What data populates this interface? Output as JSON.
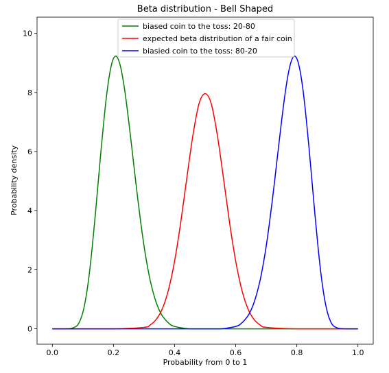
{
  "chart_data": {
    "type": "line",
    "title": "Beta distribution - Bell Shaped",
    "xlabel": "Probability from 0 to 1",
    "ylabel": "Probability density",
    "xlim": [
      -0.05,
      1.05
    ],
    "ylim": [
      -0.52,
      10.55
    ],
    "x_ticks": [
      0.0,
      0.2,
      0.4,
      0.6,
      0.8,
      1.0
    ],
    "x_tick_labels": [
      "0.0",
      "0.2",
      "0.4",
      "0.6",
      "0.8",
      "1.0"
    ],
    "y_ticks": [
      0,
      2,
      4,
      6,
      8,
      10
    ],
    "y_tick_labels": [
      "0",
      "2",
      "4",
      "6",
      "8",
      "10"
    ],
    "grid": false,
    "legend_position": "upper center",
    "series": [
      {
        "name": "biased coin to the toss: 20-80",
        "color": "#008000",
        "x": [
          0.0,
          0.02,
          0.04,
          0.06,
          0.08,
          0.09,
          0.1,
          0.11,
          0.12,
          0.13,
          0.14,
          0.15,
          0.16,
          0.17,
          0.18,
          0.19,
          0.2,
          0.21,
          0.22,
          0.23,
          0.24,
          0.25,
          0.26,
          0.27,
          0.28,
          0.29,
          0.3,
          0.31,
          0.32,
          0.33,
          0.34,
          0.35,
          0.36,
          0.38,
          0.4,
          0.45,
          0.5,
          0.6,
          0.7,
          0.8,
          0.9,
          1.0
        ],
        "y": [
          0.0,
          0.0,
          0.0,
          0.01,
          0.1,
          0.26,
          0.56,
          1.06,
          1.78,
          2.71,
          3.79,
          4.95,
          6.12,
          7.19,
          8.1,
          8.77,
          9.15,
          9.22,
          9.0,
          8.52,
          7.84,
          7.02,
          6.14,
          5.24,
          4.36,
          3.55,
          2.81,
          2.18,
          1.65,
          1.23,
          0.89,
          0.63,
          0.44,
          0.2,
          0.08,
          0.0,
          0.0,
          0.0,
          0.0,
          0.0,
          0.0,
          0.0
        ]
      },
      {
        "name": "expected beta distribution of a fair coin",
        "color": "#ff0000",
        "x": [
          0.0,
          0.1,
          0.2,
          0.3,
          0.32,
          0.34,
          0.36,
          0.38,
          0.4,
          0.42,
          0.44,
          0.46,
          0.48,
          0.5,
          0.52,
          0.54,
          0.56,
          0.58,
          0.6,
          0.62,
          0.64,
          0.66,
          0.68,
          0.7,
          0.8,
          0.9,
          1.0
        ],
        "y": [
          0.0,
          0.0,
          0.0,
          0.05,
          0.13,
          0.32,
          0.68,
          1.32,
          2.29,
          3.59,
          5.1,
          6.55,
          7.62,
          7.96,
          7.62,
          6.55,
          5.1,
          3.59,
          2.29,
          1.32,
          0.68,
          0.32,
          0.13,
          0.05,
          0.0,
          0.0,
          0.0
        ]
      },
      {
        "name": "biasied coin to the toss: 80-20",
        "color": "#0000ff",
        "x": [
          0.0,
          0.1,
          0.2,
          0.3,
          0.4,
          0.5,
          0.55,
          0.6,
          0.62,
          0.64,
          0.65,
          0.66,
          0.67,
          0.68,
          0.69,
          0.7,
          0.71,
          0.72,
          0.73,
          0.74,
          0.75,
          0.76,
          0.77,
          0.78,
          0.79,
          0.8,
          0.81,
          0.82,
          0.83,
          0.84,
          0.85,
          0.86,
          0.87,
          0.88,
          0.89,
          0.9,
          0.91,
          0.92,
          0.94,
          0.96,
          0.98,
          1.0
        ],
        "y": [
          0.0,
          0.0,
          0.0,
          0.0,
          0.0,
          0.0,
          0.0,
          0.08,
          0.2,
          0.44,
          0.63,
          0.89,
          1.23,
          1.65,
          2.18,
          2.81,
          3.55,
          4.36,
          5.24,
          6.14,
          7.02,
          7.84,
          8.52,
          9.0,
          9.22,
          9.15,
          8.77,
          8.1,
          7.19,
          6.12,
          4.95,
          3.79,
          2.71,
          1.78,
          1.06,
          0.56,
          0.26,
          0.1,
          0.01,
          0.0,
          0.0,
          0.0
        ]
      }
    ]
  }
}
